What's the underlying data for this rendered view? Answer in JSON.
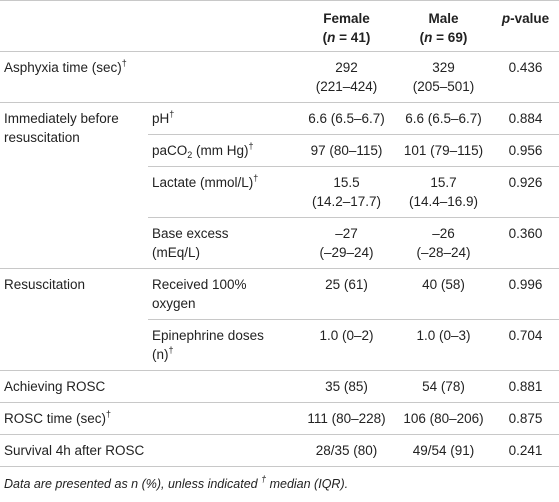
{
  "table": {
    "header": [
      [
        [
          {
            "t": "Female"
          }
        ],
        [
          {
            "t": "("
          },
          {
            "i": "n"
          },
          {
            "t": " = 41)"
          }
        ]
      ],
      [
        [
          {
            "t": "Male"
          }
        ],
        [
          {
            "t": "("
          },
          {
            "i": "n"
          },
          {
            "t": " = 69)"
          }
        ]
      ],
      [
        [
          {
            "i": "p"
          },
          {
            "t": "-value"
          }
        ]
      ]
    ],
    "sections": [
      {
        "label": [
          {
            "t": "Asphyxia time (sec)"
          },
          {
            "sup": "†"
          }
        ],
        "rows": [
          {
            "female": [
              "292",
              "(221–424)"
            ],
            "male": [
              "329",
              "(205–501)"
            ],
            "p": "0.436"
          }
        ]
      },
      {
        "label": [
          {
            "t": "Immediately before resuscitation"
          }
        ],
        "rows": [
          {
            "label": [
              {
                "t": "pH"
              },
              {
                "sup": "†"
              }
            ],
            "female": [
              "6.6 (6.5–6.7)"
            ],
            "male": [
              "6.6 (6.5–6.7)"
            ],
            "p": "0.884"
          },
          {
            "label": [
              {
                "t": "paCO"
              },
              {
                "sub": "2"
              },
              {
                "t": " (mm Hg)"
              },
              {
                "sup": "†"
              }
            ],
            "female": [
              "97 (80–115)"
            ],
            "male": [
              "101 (79–115)"
            ],
            "p": "0.956"
          },
          {
            "label": [
              {
                "t": "Lactate (mmol/L)"
              },
              {
                "sup": "†"
              }
            ],
            "female": [
              "15.5",
              "(14.2–17.7)"
            ],
            "male": [
              "15.7",
              "(14.4–16.9)"
            ],
            "p": "0.926"
          },
          {
            "label": [
              {
                "t": "Base excess (mEq/L)"
              }
            ],
            "female": [
              "–27",
              "(–29–24)"
            ],
            "male": [
              "–26",
              "(–28–24)"
            ],
            "p": "0.360"
          }
        ]
      },
      {
        "label": [
          {
            "t": "Resuscitation"
          }
        ],
        "rows": [
          {
            "label": [
              {
                "t": "Received 100% oxygen"
              }
            ],
            "female": [
              "25 (61)"
            ],
            "male": [
              "40 (58)"
            ],
            "p": "0.996"
          },
          {
            "label": [
              {
                "t": "Epinephrine doses (n)"
              },
              {
                "sup": "†"
              }
            ],
            "female": [
              "1.0 (0–2)"
            ],
            "male": [
              "1.0 (0–3)"
            ],
            "p": "0.704"
          }
        ]
      },
      {
        "label": [
          {
            "t": "Achieving ROSC"
          }
        ],
        "rows": [
          {
            "female": [
              "35 (85)"
            ],
            "male": [
              "54 (78)"
            ],
            "p": "0.881"
          }
        ]
      },
      {
        "label": [
          {
            "t": "ROSC time (sec)"
          },
          {
            "sup": "†"
          }
        ],
        "rows": [
          {
            "female": [
              "111 (80–228)"
            ],
            "male": [
              "106 (80–206)"
            ],
            "p": "0.875"
          }
        ]
      },
      {
        "label": [
          {
            "t": "Survival 4h after ROSC"
          }
        ],
        "rows": [
          {
            "female": [
              "28/35 (80)"
            ],
            "male": [
              "49/54 (91)"
            ],
            "p": "0.241"
          }
        ]
      }
    ],
    "footnote": [
      {
        "t": "Data are presented as n (%), unless indicated "
      },
      {
        "sup": "†"
      },
      {
        "t": " median (IQR)."
      }
    ]
  }
}
